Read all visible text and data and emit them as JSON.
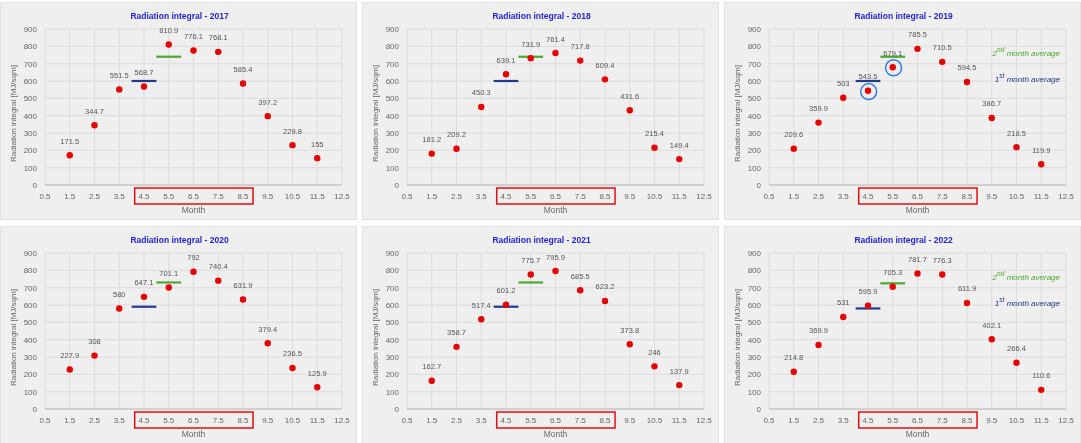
{
  "chart_data": [
    {
      "type": "scatter",
      "title": "Radiation integral - 2017",
      "xlabel": "Month",
      "ylabel": "Radiation integral [MJ/sqm]",
      "xlim": [
        0.5,
        12.5
      ],
      "xticks": [
        0.5,
        1.5,
        2.5,
        3.5,
        4.5,
        5.5,
        6.5,
        7.5,
        8.5,
        9.5,
        10.5,
        11.5,
        12.5
      ],
      "ylim": [
        0,
        900
      ],
      "yticks": [
        0,
        100,
        200,
        300,
        400,
        500,
        600,
        700,
        800,
        900
      ],
      "grid": true,
      "legend": false,
      "marker": "circle",
      "series": [
        {
          "color": "#e60000",
          "data_labels": true,
          "x": [
            1.5,
            2.5,
            3.5,
            4.5,
            5.5,
            6.5,
            7.5,
            8.5,
            9.5,
            10.5,
            11.5
          ],
          "values": [
            171.5,
            344.7,
            551.5,
            568.7,
            810.9,
            776.1,
            768.1,
            585.4,
            397.2,
            229.8,
            155
          ]
        },
        {
          "type": "line",
          "marker": "none",
          "color": "#4ea72e",
          "x": [
            5,
            6
          ],
          "values": [
            740,
            740
          ]
        },
        {
          "type": "line",
          "marker": "none",
          "color": "#1f3b8c",
          "x": [
            4,
            5
          ],
          "values": [
            600,
            600
          ]
        }
      ]
    },
    {
      "type": "scatter",
      "title": "Radiation integral - 2018",
      "xlabel": "Month",
      "ylabel": "Radiation integral [MJ/sqm]",
      "xlim": [
        0.5,
        12.5
      ],
      "xticks": [
        0.5,
        1.5,
        2.5,
        3.5,
        4.5,
        5.5,
        6.5,
        7.5,
        8.5,
        9.5,
        10.5,
        11.5,
        12.5
      ],
      "ylim": [
        0,
        900
      ],
      "yticks": [
        0,
        100,
        200,
        300,
        400,
        500,
        600,
        700,
        800,
        900
      ],
      "grid": true,
      "legend": false,
      "marker": "circle",
      "series": [
        {
          "color": "#e60000",
          "data_labels": true,
          "x": [
            1.5,
            2.5,
            3.5,
            4.5,
            5.5,
            6.5,
            7.5,
            8.5,
            9.5,
            10.5,
            11.5
          ],
          "values": [
            181.2,
            209.2,
            450.3,
            639.1,
            731.9,
            761.4,
            717.8,
            609.4,
            431.6,
            215.4,
            149.4
          ]
        },
        {
          "type": "line",
          "marker": "none",
          "color": "#4ea72e",
          "x": [
            5,
            6
          ],
          "values": [
            740,
            740
          ]
        },
        {
          "type": "line",
          "marker": "none",
          "color": "#1f3b8c",
          "x": [
            4,
            5
          ],
          "values": [
            600,
            600
          ]
        }
      ]
    },
    {
      "type": "scatter",
      "title": "Radiation integral - 2019",
      "xlabel": "Month",
      "ylabel": "Radiation integral [MJ/sqm]",
      "xlim": [
        0.5,
        12.5
      ],
      "xticks": [
        0.5,
        1.5,
        2.5,
        3.5,
        4.5,
        5.5,
        6.5,
        7.5,
        8.5,
        9.5,
        10.5,
        11.5,
        12.5
      ],
      "ylim": [
        0,
        900
      ],
      "yticks": [
        0,
        100,
        200,
        300,
        400,
        500,
        600,
        700,
        800,
        900
      ],
      "grid": true,
      "legend": "top right",
      "marker": "circle",
      "series": [
        {
          "color": "#e60000",
          "data_labels": true,
          "x": [
            1.5,
            2.5,
            3.5,
            4.5,
            5.5,
            6.5,
            7.5,
            8.5,
            9.5,
            10.5,
            11.5
          ],
          "values": [
            209.6,
            359.9,
            503,
            543.5,
            679.1,
            785.5,
            710.5,
            594.5,
            386.7,
            218.5,
            119.9
          ]
        },
        {
          "type": "line",
          "marker": "none",
          "name": "2$^{nd}$ month average",
          "color": "#4ea72e",
          "x": [
            5,
            6
          ],
          "values": [
            740,
            740
          ]
        },
        {
          "type": "line",
          "marker": "none",
          "name": "1$^{st}$ month average",
          "color": "#1f3b8c",
          "x": [
            4,
            5
          ],
          "values": [
            600,
            600
          ]
        }
      ]
    },
    {
      "type": "scatter",
      "title": "Radiation integral - 2020",
      "xlabel": "Month",
      "ylabel": "Radiation integral [MJ/sqm]",
      "xlim": [
        0.5,
        12.5
      ],
      "xticks": [
        0.5,
        1.5,
        2.5,
        3.5,
        4.5,
        5.5,
        6.5,
        7.5,
        8.5,
        9.5,
        10.5,
        11.5,
        12.5
      ],
      "ylim": [
        0,
        900
      ],
      "yticks": [
        0,
        100,
        200,
        300,
        400,
        500,
        600,
        700,
        800,
        900
      ],
      "grid": true,
      "legend": false,
      "marker": "circle",
      "series": [
        {
          "color": "#e60000",
          "data_labels": true,
          "x": [
            1.5,
            2.5,
            3.5,
            4.5,
            5.5,
            6.5,
            7.5,
            8.5,
            9.5,
            10.5,
            11.5
          ],
          "values": [
            227.9,
            308,
            580,
            647.1,
            701.1,
            792,
            740.4,
            631.9,
            379.4,
            236.5,
            125.9
          ]
        },
        {
          "type": "line",
          "marker": "none",
          "color": "#4ea72e",
          "x": [
            5,
            6
          ],
          "values": [
            730,
            730
          ]
        },
        {
          "type": "line",
          "marker": "none",
          "color": "#1f3b8c",
          "x": [
            4,
            5
          ],
          "values": [
            590,
            590
          ]
        }
      ]
    },
    {
      "type": "scatter",
      "title": "Radiation integral - 2021",
      "xlabel": "Month",
      "ylabel": "Radiation integral [MJ/sqm]",
      "xlim": [
        0.5,
        12.5
      ],
      "xticks": [
        0.5,
        1.5,
        2.5,
        3.5,
        4.5,
        5.5,
        6.5,
        7.5,
        8.5,
        9.5,
        10.5,
        11.5,
        12.5
      ],
      "ylim": [
        0,
        900
      ],
      "yticks": [
        0,
        100,
        200,
        300,
        400,
        500,
        600,
        700,
        800,
        900
      ],
      "grid": true,
      "legend": false,
      "marker": "circle",
      "series": [
        {
          "color": "#e60000",
          "data_labels": true,
          "x": [
            1.5,
            2.5,
            3.5,
            4.5,
            5.5,
            6.5,
            7.5,
            8.5,
            9.5,
            10.5,
            11.5
          ],
          "values": [
            162.7,
            358.7,
            517.4,
            601.2,
            775.7,
            795.9,
            685.5,
            623.2,
            373.8,
            246,
            137.9
          ]
        },
        {
          "type": "line",
          "marker": "none",
          "color": "#4ea72e",
          "x": [
            5,
            6
          ],
          "values": [
            730,
            730
          ]
        },
        {
          "type": "line",
          "marker": "none",
          "color": "#1f3b8c",
          "x": [
            4,
            5
          ],
          "values": [
            590,
            590
          ]
        }
      ]
    },
    {
      "type": "scatter",
      "title": "Radiation integral - 2022",
      "xlabel": "Month",
      "ylabel": "Radiation integral [MJ/sqm]",
      "xlim": [
        0.5,
        12.5
      ],
      "xticks": [
        0.5,
        1.5,
        2.5,
        3.5,
        4.5,
        5.5,
        6.5,
        7.5,
        8.5,
        9.5,
        10.5,
        11.5,
        12.5
      ],
      "ylim": [
        0,
        900
      ],
      "yticks": [
        0,
        100,
        200,
        300,
        400,
        500,
        600,
        700,
        800,
        900
      ],
      "grid": true,
      "legend": "top right",
      "marker": "circle",
      "series": [
        {
          "color": "#e60000",
          "data_labels": true,
          "x": [
            1.5,
            2.5,
            3.5,
            4.5,
            5.5,
            6.5,
            7.5,
            8.5,
            9.5,
            10.5,
            11.5
          ],
          "values": [
            214.8,
            369.9,
            531,
            595.9,
            705.3,
            781.7,
            776.3,
            611.9,
            402.1,
            266.4,
            110.6
          ]
        },
        {
          "type": "line",
          "marker": "none",
          "name": "2$^{nd}$ month average",
          "color": "#4ea72e",
          "x": [
            5,
            6
          ],
          "values": [
            725,
            725
          ]
        },
        {
          "type": "line",
          "marker": "none",
          "name": "1$^{st}$ month average",
          "color": "#1f3b8c",
          "x": [
            4,
            5
          ],
          "values": [
            580,
            580
          ]
        }
      ]
    }
  ]
}
